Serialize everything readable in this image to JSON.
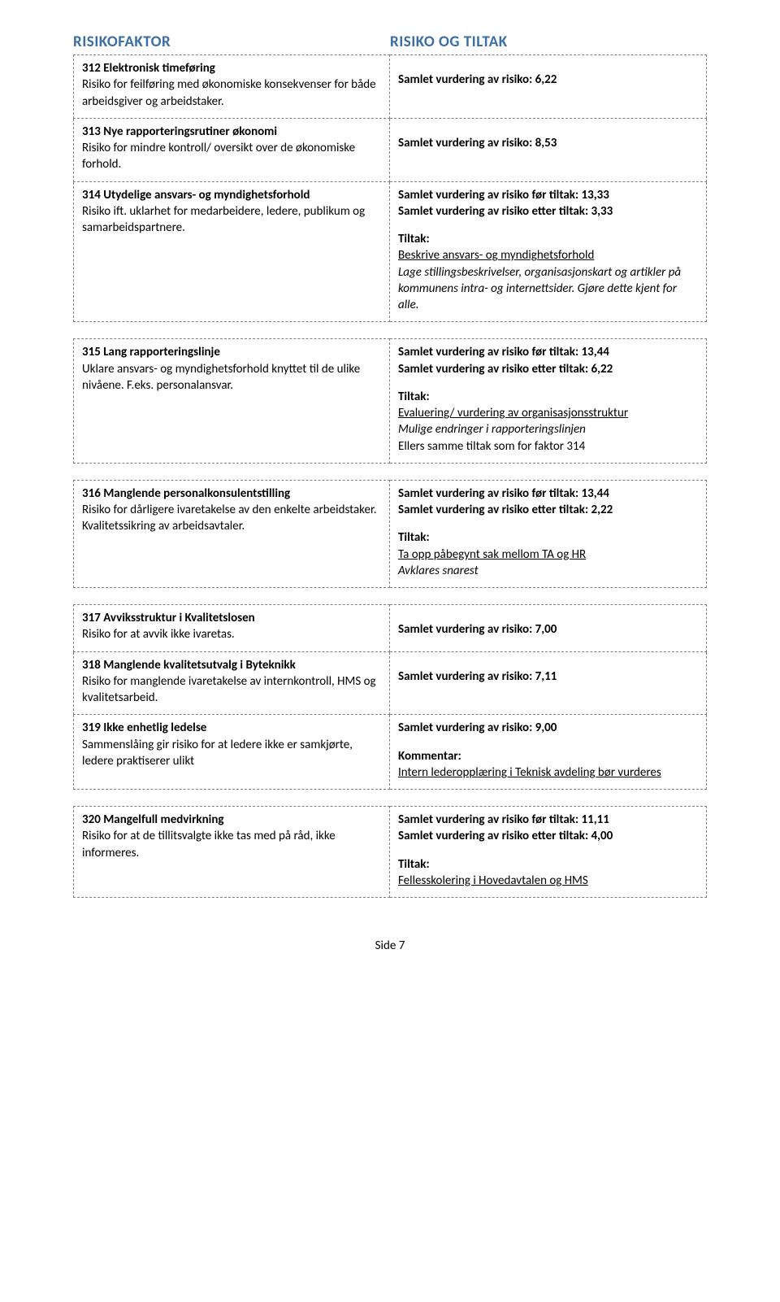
{
  "headers": {
    "left": "RISIKOFAKTOR",
    "right": "RISIKO OG TILTAK"
  },
  "groups": [
    {
      "rows": [
        {
          "left": {
            "title": "312 Elektronisk timeføring",
            "body": "Risiko for feilføring med økonomiske konsekvenser for både arbeidsgiver og arbeidstaker."
          },
          "right": {
            "line1": "Samlet vurdering av risiko: 6,22"
          }
        },
        {
          "left": {
            "title": "313 Nye rapporteringsrutiner økonomi",
            "body": "Risiko for mindre kontroll/ oversikt over de økonomiske forhold."
          },
          "right": {
            "line1": "Samlet vurdering av risiko: 8,53"
          }
        },
        {
          "left": {
            "title": "314 Utydelige ansvars- og myndighetsforhold",
            "body": "Risiko ift. uklarhet for medarbeidere, ledere, publikum og samarbeidspartnere."
          },
          "right": {
            "before": "Samlet vurdering av risiko før tiltak: 13,33",
            "after": "Samlet vurdering av risiko etter tiltak: 3,33",
            "tiltak_label": "Tiltak:",
            "tiltak_title": "Beskrive ansvars- og myndighetsforhold",
            "tiltak_body": "Lage stillingsbeskrivelser, organisasjonskart og artikler på kommunens intra- og internettsider. Gjøre dette kjent for alle."
          }
        }
      ]
    },
    {
      "rows": [
        {
          "left": {
            "title": "315 Lang rapporteringslinje",
            "body": "Uklare ansvars- og myndighetsforhold knyttet til de ulike nivåene. F.eks. personalansvar."
          },
          "right": {
            "before": "Samlet vurdering av risiko før tiltak: 13,44",
            "after": "Samlet vurdering av risiko etter tiltak: 6,22",
            "tiltak_label": "Tiltak:",
            "tiltak_title": "Evaluering/ vurdering av organisasjonsstruktur",
            "tiltak_body": "Mulige endringer i rapporteringslinjen",
            "tiltak_extra": "Ellers samme tiltak som for faktor 314"
          }
        }
      ]
    },
    {
      "rows": [
        {
          "left": {
            "title": "316 Manglende personalkonsulentstilling",
            "body": "Risiko for dårligere ivaretakelse av den enkelte arbeidstaker. Kvalitetssikring av arbeidsavtaler."
          },
          "right": {
            "before": "Samlet vurdering av risiko før tiltak: 13,44",
            "after": "Samlet vurdering av risiko etter tiltak: 2,22",
            "tiltak_label": "Tiltak:",
            "tiltak_title": "Ta opp påbegynt sak mellom TA og HR",
            "tiltak_body": "Avklares snarest"
          }
        }
      ]
    },
    {
      "rows": [
        {
          "left": {
            "title": "317 Avviksstruktur i Kvalitetslosen",
            "body": "Risiko for at avvik ikke ivaretas."
          },
          "right": {
            "line1": "Samlet vurdering av risiko: 7,00"
          }
        },
        {
          "left": {
            "title": "318 Manglende kvalitetsutvalg i Byteknikk",
            "body": "Risiko for manglende ivaretakelse av internkontroll, HMS og kvalitetsarbeid."
          },
          "right": {
            "line1": "Samlet vurdering av risiko: 7,11"
          }
        },
        {
          "left": {
            "title": "319 Ikke enhetlig ledelse",
            "body": "Sammenslåing gir risiko for at ledere ikke er samkjørte, ledere praktiserer ulikt"
          },
          "right": {
            "line1": "Samlet vurdering av risiko: 9,00",
            "comment_label": "Kommentar:",
            "comment_body": "Intern lederopplæring i Teknisk avdeling bør vurderes"
          }
        }
      ]
    },
    {
      "rows": [
        {
          "left": {
            "title": "320 Mangelfull medvirkning",
            "body": "Risiko for at de tillitsvalgte ikke tas med på råd, ikke informeres."
          },
          "right": {
            "before": "Samlet vurdering av risiko før tiltak: 11,11",
            "after": "Samlet vurdering av risiko etter tiltak: 4,00",
            "tiltak_label": "Tiltak:",
            "tiltak_title": "Fellesskolering i Hovedavtalen og HMS"
          }
        }
      ]
    }
  ],
  "footer": "Side 7"
}
